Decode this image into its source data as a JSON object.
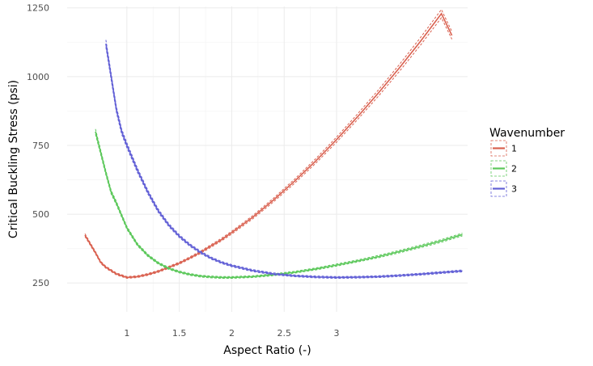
{
  "chart_data": {
    "type": "line",
    "title": "",
    "xlabel": "Aspect Ratio (-)",
    "ylabel": "Critical Buckling Stress (psi)",
    "xlim": [
      0.43,
      4.25
    ],
    "ylim": [
      145,
      1255
    ],
    "x_ticks": [
      1,
      1.5,
      2,
      2.5,
      3
    ],
    "x_tick_labels": [
      "1",
      "1.5",
      "2",
      "2.5",
      "3"
    ],
    "y_ticks": [
      250,
      500,
      750,
      1000,
      1250
    ],
    "y_tick_labels": [
      "250",
      "500",
      "750",
      "1000",
      "1250"
    ],
    "grid": true,
    "legend": {
      "title": "Wavenumber",
      "position": "right"
    },
    "band_half_width_fraction": 0.012,
    "series": [
      {
        "name": "1",
        "color": "#d9604f",
        "x": [
          0.6,
          0.7,
          0.75,
          0.8,
          0.9,
          1.0,
          1.1,
          1.2,
          1.3,
          1.4,
          1.5,
          1.6,
          1.7,
          1.8,
          1.9,
          2.0,
          2.2,
          2.4,
          2.6,
          2.8,
          3.0,
          3.2,
          3.4,
          3.6,
          3.8,
          4.0,
          4.1
        ],
        "values": [
          424,
          360,
          325,
          307,
          283,
          270,
          273,
          281,
          292,
          307,
          322,
          341,
          361,
          384,
          407,
          433,
          489,
          552,
          620,
          693,
          771,
          854,
          941,
          1032,
          1128,
          1229,
          1150
        ]
      },
      {
        "name": "2",
        "color": "#5cc85b",
        "x": [
          0.7,
          0.8,
          0.85,
          0.9,
          1.0,
          1.1,
          1.2,
          1.3,
          1.4,
          1.5,
          1.6,
          1.7,
          1.8,
          1.9,
          2.0,
          2.2,
          2.4,
          2.6,
          2.8,
          3.0,
          3.2,
          3.4,
          3.6,
          3.8,
          4.0,
          4.2
        ],
        "values": [
          800,
          650,
          580,
          540,
          450,
          390,
          350,
          322,
          303,
          290,
          281,
          275,
          272,
          270,
          270,
          273,
          280,
          289,
          301,
          315,
          330,
          346,
          364,
          383,
          403,
          426
        ]
      },
      {
        "name": "3",
        "color": "#6260d6",
        "x": [
          0.8,
          0.85,
          0.9,
          0.95,
          1.0,
          1.1,
          1.2,
          1.3,
          1.4,
          1.5,
          1.6,
          1.7,
          1.8,
          1.9,
          2.0,
          2.2,
          2.4,
          2.6,
          2.8,
          3.0,
          3.2,
          3.4,
          3.6,
          3.8,
          4.0,
          4.2
        ],
        "values": [
          1120,
          1000,
          880,
          800,
          750,
          660,
          580,
          512,
          460,
          420,
          388,
          362,
          341,
          325,
          313,
          295,
          283,
          276,
          272,
          270,
          271,
          273,
          277,
          282,
          288,
          294
        ]
      }
    ]
  }
}
